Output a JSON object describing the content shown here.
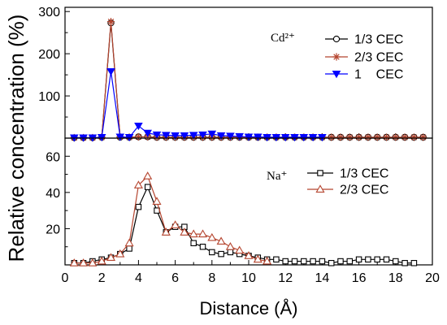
{
  "chart_data": {
    "type": "line",
    "xlabel": "Distance (Å)",
    "ylabel": "Relative concentration (%)",
    "xlim": [
      0,
      20
    ],
    "xticks": [
      0,
      2,
      4,
      6,
      8,
      10,
      12,
      14,
      16,
      18,
      20
    ],
    "grid": false,
    "panels": [
      {
        "annotation": "Cd²⁺",
        "ylim": [
          0,
          310
        ],
        "yticks": [
          100,
          200,
          300
        ],
        "legend_placement": "top-right",
        "series": [
          {
            "name": "1/3 CEC",
            "color": "#000000",
            "marker": "circle-open",
            "x": [
              0.5,
              1,
              1.5,
              2,
              2.5,
              3,
              3.5,
              4,
              4.5,
              5,
              5.5,
              6,
              6.5,
              7,
              7.5,
              8,
              8.5,
              9,
              9.5,
              10,
              10.5,
              11,
              11.5,
              12,
              12.5,
              13,
              13.5,
              14,
              14.5,
              15,
              15.5,
              16,
              16.5,
              17,
              17.5,
              18,
              18.5,
              19,
              19.5
            ],
            "y": [
              1,
              1,
              1,
              2,
              273,
              2,
              2,
              3,
              3,
              2,
              2,
              2,
              2,
              2,
              2,
              2,
              2,
              2,
              2,
              2,
              2,
              2,
              2,
              2,
              2,
              2,
              2,
              2,
              2,
              2,
              2,
              2,
              2,
              2,
              2,
              2,
              2,
              2,
              2
            ]
          },
          {
            "name": "2/3 CEC",
            "color": "#b5452f",
            "marker": "asterisk",
            "x": [
              0.5,
              1,
              1.5,
              2,
              2.5,
              3,
              3.5,
              4,
              4.5,
              5,
              5.5,
              6,
              6.5,
              7,
              7.5,
              8,
              8.5,
              9,
              9.5,
              10,
              10.5,
              11,
              11.5,
              12,
              12.5,
              13,
              13.5,
              14,
              14.5,
              15,
              15.5,
              16,
              16.5,
              17,
              17.5,
              18,
              18.5,
              19,
              19.5
            ],
            "y": [
              1,
              1,
              1,
              2,
              276,
              3,
              2,
              3,
              3,
              2,
              2,
              2,
              2,
              2,
              2,
              2,
              2,
              2,
              2,
              2,
              2,
              2,
              2,
              2,
              2,
              2,
              2,
              2,
              2,
              2,
              2,
              2,
              2,
              2,
              2,
              2,
              2,
              2,
              2
            ]
          },
          {
            "name": "1    CEC",
            "color": "#0000ff",
            "marker": "triangle-down-filled",
            "x": [
              0.5,
              1,
              1.5,
              2,
              2.5,
              3,
              3.5,
              4,
              4.5,
              5,
              5.5,
              6,
              6.5,
              7,
              7.5,
              8,
              8.5,
              9,
              9.5,
              10,
              10.5,
              11,
              11.5,
              12,
              12.5,
              13,
              13.5,
              14
            ],
            "y": [
              1,
              1,
              1,
              2,
              158,
              3,
              2,
              29,
              12,
              8,
              7,
              6,
              6,
              7,
              8,
              10,
              6,
              5,
              4,
              3,
              3,
              2,
              2,
              2,
              2,
              2,
              2,
              2
            ]
          }
        ]
      },
      {
        "annotation": "Na⁺",
        "ylim": [
          0,
          70
        ],
        "yticks": [
          20,
          40,
          60
        ],
        "legend_placement": "top-right",
        "series": [
          {
            "name": "1/3 CEC",
            "color": "#000000",
            "marker": "square-open",
            "x": [
              0.5,
              1,
              1.5,
              2,
              2.5,
              3,
              3.5,
              4,
              4.5,
              5,
              5.5,
              6,
              6.5,
              7,
              7.5,
              8,
              8.5,
              9,
              9.5,
              10,
              10.5,
              11,
              11.5,
              12,
              12.5,
              13,
              13.5,
              14,
              14.5,
              15,
              15.5,
              16,
              16.5,
              17,
              17.5,
              18,
              18.5,
              19
            ],
            "y": [
              1,
              1,
              2,
              3,
              4,
              6,
              9,
              32,
              43,
              30,
              18,
              21,
              21,
              12,
              10,
              7,
              6,
              7,
              6,
              5,
              4,
              3,
              3,
              2,
              2,
              2,
              2,
              2,
              1,
              2,
              2,
              3,
              3,
              3,
              3,
              2,
              1,
              1
            ]
          },
          {
            "name": "2/3 CEC",
            "color": "#b5452f",
            "marker": "triangle-up-open",
            "x": [
              0.5,
              1,
              1.5,
              2,
              2.5,
              3,
              3.5,
              4,
              4.5,
              5,
              5.5,
              6,
              6.5,
              7,
              7.5,
              8,
              8.5,
              9,
              9.5,
              10,
              10.5,
              11
            ],
            "y": [
              1,
              1,
              1,
              2,
              4,
              6,
              12,
              44,
              49,
              35,
              18,
              22,
              18,
              17,
              17,
              15,
              13,
              10,
              8,
              5,
              3,
              2
            ]
          }
        ]
      }
    ]
  }
}
